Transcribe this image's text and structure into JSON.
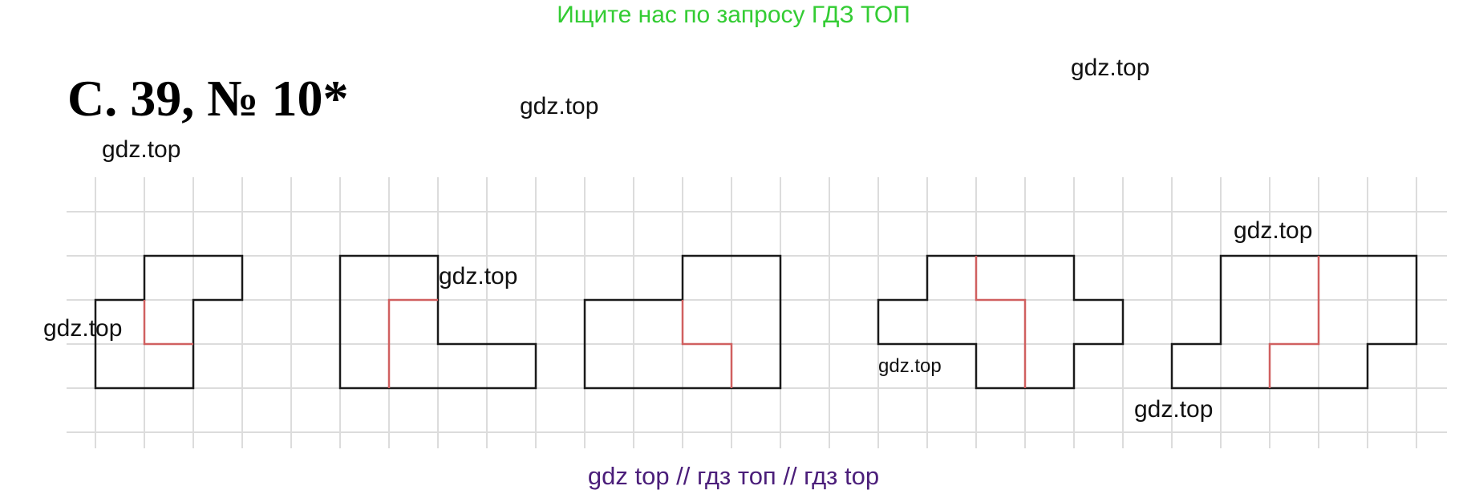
{
  "banner": "Ищите нас по запросу ГДЗ ТОП",
  "heading": "С. 39, № 10*",
  "watermarks": [
    "gdz.top",
    "gdz.top",
    "gdz.top",
    "gdz.top",
    "gdz.top",
    "gdz.top",
    "gdz.top",
    "gdz.top"
  ],
  "footer": "gdz top  //  гдз топ  //  гдз top",
  "colors": {
    "banner": "#33cc33",
    "grid": "#dcdcdc",
    "outline": "#1a1a1a",
    "cut": "#d06060",
    "footer": "#4b1e7a"
  }
}
